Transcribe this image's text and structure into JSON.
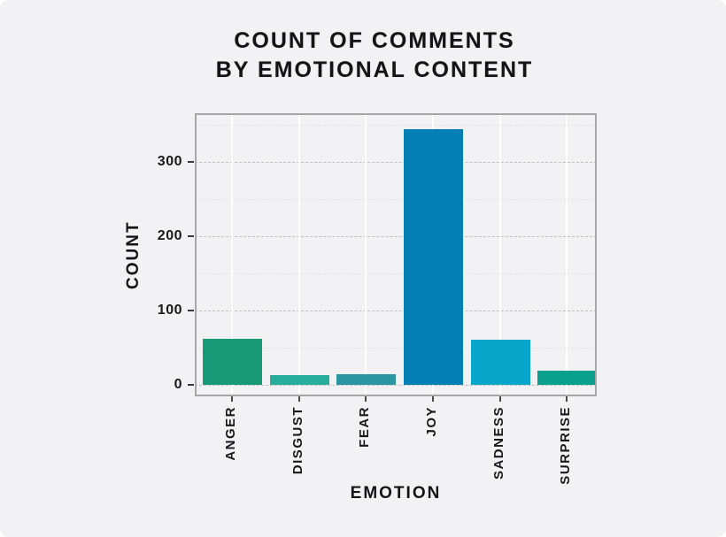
{
  "title": {
    "line1": "COUNT OF COMMENTS",
    "line2": "BY EMOTIONAL CONTENT"
  },
  "chart_data": {
    "type": "bar",
    "title": "COUNT OF COMMENTS BY EMOTIONAL CONTENT",
    "categories": [
      "ANGER",
      "DISGUST",
      "FEAR",
      "JOY",
      "SADNESS",
      "SURPRISE"
    ],
    "values": [
      62,
      13,
      14,
      344,
      61,
      19
    ],
    "bar_colors": [
      "#199a77",
      "#28ad9a",
      "#2b96a1",
      "#0680b4",
      "#0aa6ca",
      "#0aa08d"
    ],
    "xlabel": "EMOTION",
    "ylabel": "COUNT",
    "yticks": [
      0,
      100,
      200,
      300
    ],
    "ylim": [
      -17,
      365
    ],
    "grid": "horizontal dashed gridlines every 50 (major every 100), faint white vertical gridlines at category centers",
    "legend_position": "none"
  },
  "colors": {
    "background": "#f2f2f4",
    "panel_border": "#a5a5aa",
    "grid_major": "#bfbfc4",
    "grid_minor": "#e3e3e8",
    "grid_vertical": "#ffffff",
    "tick_mark": "#39393d",
    "text": "#141414"
  }
}
